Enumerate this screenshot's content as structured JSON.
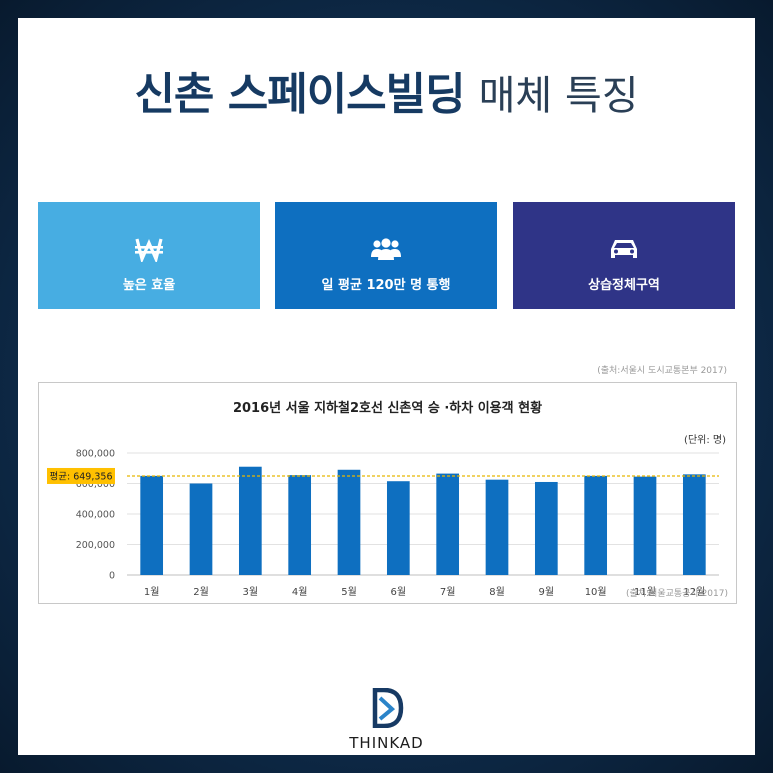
{
  "header": {
    "title_bold": "신촌 스페이스빌딩",
    "title_light": "매체 특징"
  },
  "features": [
    {
      "label": "높은 효율",
      "icon": "won-icon",
      "color": "#47ade2"
    },
    {
      "label": "일 평균 120만 명 통행",
      "icon": "people-icon",
      "color": "#0e6fc0"
    },
    {
      "label": "상습정체구역",
      "icon": "car-icon",
      "color": "#2f3487"
    }
  ],
  "source_top": "(출처:서울시 도시교통본부 2017)",
  "chart_data": {
    "type": "bar",
    "title": "2016년 서울 지하철2호선 신촌역 승 ·하차 이용객 현황",
    "unit": "(단위: 명)",
    "categories": [
      "1월",
      "2월",
      "3월",
      "4월",
      "5월",
      "6월",
      "7월",
      "8월",
      "9월",
      "10월",
      "11월",
      "12월"
    ],
    "values": [
      650000,
      600000,
      710000,
      655000,
      690000,
      615000,
      665000,
      625000,
      610000,
      650000,
      645000,
      660000
    ],
    "ylim": [
      0,
      800000
    ],
    "yticks": [
      "0",
      "200,000",
      "400,000",
      "600,000",
      "800,000"
    ],
    "average_label": "평균: 649,356",
    "average_value": 649356,
    "bar_color": "#0e6fc0",
    "average_line_color": "#e8b800",
    "source": "(출처:서울교통공사 2017)"
  },
  "logo": {
    "text": "THINKAD"
  }
}
